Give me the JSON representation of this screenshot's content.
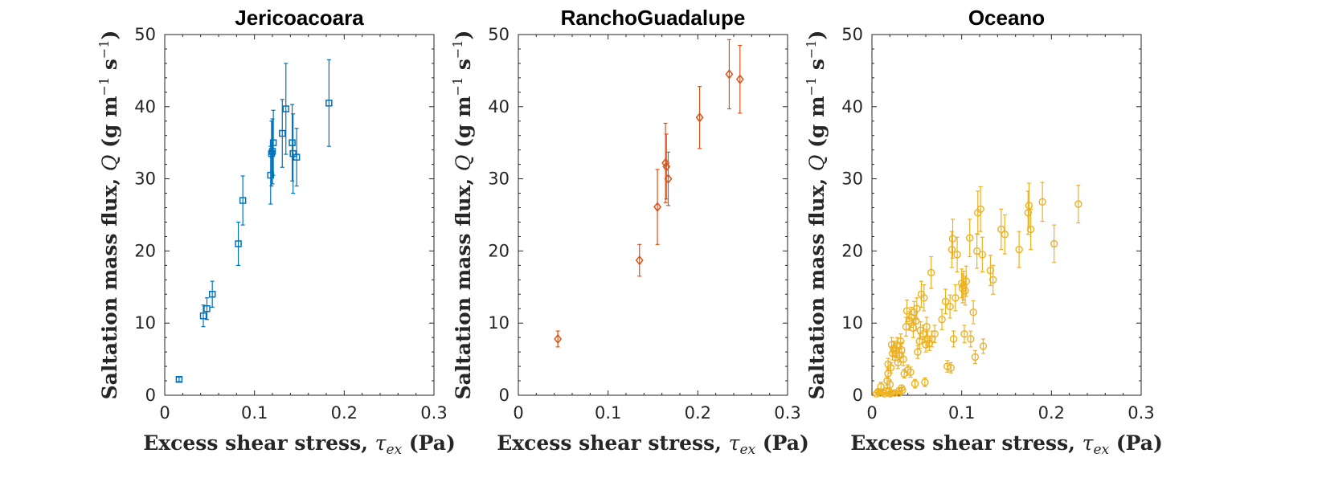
{
  "chart_data": [
    {
      "type": "scatter",
      "title": "Jericoacoara",
      "xlabel": "Excess shear stress, τex (Pa)",
      "ylabel": "Saltation mass flux, Q (g m−1 s−1)",
      "xlim": [
        0,
        0.3
      ],
      "ylim": [
        0,
        50
      ],
      "xticks": [
        0,
        0.1,
        0.2,
        0.3
      ],
      "xtick_labels": [
        "0",
        "0.1",
        "0.2",
        "0.3"
      ],
      "yticks": [
        0,
        10,
        20,
        30,
        40,
        50
      ],
      "ytick_labels": [
        "0",
        "10",
        "20",
        "30",
        "40",
        "50"
      ],
      "marker": "square",
      "color": "#0072BD",
      "grid": false,
      "points": [
        {
          "x": 0.016,
          "y": 2.2,
          "err": 0.3
        },
        {
          "x": 0.043,
          "y": 11.0,
          "err": 1.5
        },
        {
          "x": 0.047,
          "y": 12.0,
          "err": 1.5
        },
        {
          "x": 0.053,
          "y": 14.0,
          "err": 1.8
        },
        {
          "x": 0.082,
          "y": 21.0,
          "err": 3.0
        },
        {
          "x": 0.087,
          "y": 27.0,
          "err": 3.4
        },
        {
          "x": 0.118,
          "y": 30.5,
          "err": 4.0
        },
        {
          "x": 0.119,
          "y": 33.5,
          "err": 4.5
        },
        {
          "x": 0.12,
          "y": 33.8,
          "err": 4.5
        },
        {
          "x": 0.121,
          "y": 35.0,
          "err": 4.5
        },
        {
          "x": 0.131,
          "y": 36.3,
          "err": 4.7
        },
        {
          "x": 0.135,
          "y": 39.7,
          "err": 6.3
        },
        {
          "x": 0.142,
          "y": 35.0,
          "err": 5.3
        },
        {
          "x": 0.143,
          "y": 33.5,
          "err": 5.5
        },
        {
          "x": 0.147,
          "y": 33.0,
          "err": 4.0
        },
        {
          "x": 0.183,
          "y": 40.5,
          "err": 6.0
        }
      ]
    },
    {
      "type": "scatter",
      "title": "RanchoGuadalupe",
      "xlabel": "Excess shear stress, τex (Pa)",
      "ylabel": "Saltation mass flux, Q (g m−1 s−1)",
      "xlim": [
        0,
        0.3
      ],
      "ylim": [
        0,
        50
      ],
      "xticks": [
        0,
        0.1,
        0.2,
        0.3
      ],
      "xtick_labels": [
        "0",
        "0.1",
        "0.2",
        "0.3"
      ],
      "yticks": [
        0,
        10,
        20,
        30,
        40,
        50
      ],
      "ytick_labels": [
        "0",
        "10",
        "20",
        "30",
        "40",
        "50"
      ],
      "marker": "diamond",
      "color": "#D95319",
      "grid": false,
      "points": [
        {
          "x": 0.044,
          "y": 7.8,
          "err": 1.1
        },
        {
          "x": 0.135,
          "y": 18.7,
          "err": 2.2
        },
        {
          "x": 0.155,
          "y": 26.1,
          "err": 5.2
        },
        {
          "x": 0.164,
          "y": 32.2,
          "err": 5.5
        },
        {
          "x": 0.165,
          "y": 31.7,
          "err": 4.5
        },
        {
          "x": 0.167,
          "y": 30.0,
          "err": 3.7
        },
        {
          "x": 0.202,
          "y": 38.5,
          "err": 4.3
        },
        {
          "x": 0.235,
          "y": 44.5,
          "err": 4.8
        },
        {
          "x": 0.247,
          "y": 43.8,
          "err": 4.7
        }
      ]
    },
    {
      "type": "scatter",
      "title": "Oceano",
      "xlabel": "Excess shear stress, τex (Pa)",
      "ylabel": "Saltation mass flux, Q (g m−1 s−1)",
      "xlim": [
        0,
        0.3
      ],
      "ylim": [
        0,
        50
      ],
      "xticks": [
        0,
        0.1,
        0.2,
        0.3
      ],
      "xtick_labels": [
        "0",
        "0.1",
        "0.2",
        "0.3"
      ],
      "yticks": [
        0,
        10,
        20,
        30,
        40,
        50
      ],
      "ytick_labels": [
        "0",
        "10",
        "20",
        "30",
        "40",
        "50"
      ],
      "marker": "circle",
      "color": "#EDB120",
      "grid": false,
      "points": [
        {
          "x": 0.005,
          "y": 0.2,
          "err": 0.2
        },
        {
          "x": 0.007,
          "y": 0.5,
          "err": 0.3
        },
        {
          "x": 0.009,
          "y": 0.3,
          "err": 0.2
        },
        {
          "x": 0.01,
          "y": 1.2,
          "err": 0.6
        },
        {
          "x": 0.012,
          "y": 0.4,
          "err": 0.3
        },
        {
          "x": 0.014,
          "y": 0.2,
          "err": 0.2
        },
        {
          "x": 0.016,
          "y": 0.6,
          "err": 0.4
        },
        {
          "x": 0.017,
          "y": 2.0,
          "err": 0.6
        },
        {
          "x": 0.018,
          "y": 3.0,
          "err": 0.7
        },
        {
          "x": 0.018,
          "y": 4.3,
          "err": 0.8
        },
        {
          "x": 0.019,
          "y": 0.5,
          "err": 0.4
        },
        {
          "x": 0.02,
          "y": 0.2,
          "err": 0.2
        },
        {
          "x": 0.02,
          "y": 1.5,
          "err": 0.6
        },
        {
          "x": 0.021,
          "y": 3.8,
          "err": 0.7
        },
        {
          "x": 0.022,
          "y": 7.0,
          "err": 1.0
        },
        {
          "x": 0.022,
          "y": 0.3,
          "err": 0.2
        },
        {
          "x": 0.023,
          "y": 5.8,
          "err": 0.9
        },
        {
          "x": 0.024,
          "y": 6.5,
          "err": 1.0
        },
        {
          "x": 0.025,
          "y": 0.3,
          "err": 0.2
        },
        {
          "x": 0.026,
          "y": 5.7,
          "err": 0.9
        },
        {
          "x": 0.027,
          "y": 6.2,
          "err": 1.0
        },
        {
          "x": 0.028,
          "y": 7.0,
          "err": 1.0
        },
        {
          "x": 0.029,
          "y": 4.5,
          "err": 0.8
        },
        {
          "x": 0.03,
          "y": 0.6,
          "err": 0.4
        },
        {
          "x": 0.03,
          "y": 0.3,
          "err": 0.2
        },
        {
          "x": 0.031,
          "y": 5.5,
          "err": 0.9
        },
        {
          "x": 0.032,
          "y": 7.5,
          "err": 1.0
        },
        {
          "x": 0.033,
          "y": 6.3,
          "err": 1.0
        },
        {
          "x": 0.033,
          "y": 1.0,
          "err": 0.4
        },
        {
          "x": 0.034,
          "y": 0.7,
          "err": 0.4
        },
        {
          "x": 0.035,
          "y": 5.0,
          "err": 0.9
        },
        {
          "x": 0.036,
          "y": 3.0,
          "err": 0.6
        },
        {
          "x": 0.038,
          "y": 9.5,
          "err": 1.3
        },
        {
          "x": 0.039,
          "y": 11.7,
          "err": 1.5
        },
        {
          "x": 0.04,
          "y": 3.5,
          "err": 0.7
        },
        {
          "x": 0.042,
          "y": 10.3,
          "err": 1.3
        },
        {
          "x": 0.043,
          "y": 3.2,
          "err": 0.7
        },
        {
          "x": 0.044,
          "y": 10.8,
          "err": 1.4
        },
        {
          "x": 0.046,
          "y": 9.3,
          "err": 1.3
        },
        {
          "x": 0.047,
          "y": 11.5,
          "err": 1.5
        },
        {
          "x": 0.048,
          "y": 1.6,
          "err": 0.6
        },
        {
          "x": 0.049,
          "y": 10.3,
          "err": 1.3
        },
        {
          "x": 0.05,
          "y": 12.0,
          "err": 1.5
        },
        {
          "x": 0.051,
          "y": 6.0,
          "err": 0.9
        },
        {
          "x": 0.053,
          "y": 7.5,
          "err": 1.0
        },
        {
          "x": 0.054,
          "y": 9.0,
          "err": 1.2
        },
        {
          "x": 0.055,
          "y": 14.0,
          "err": 1.8
        },
        {
          "x": 0.057,
          "y": 8.5,
          "err": 1.2
        },
        {
          "x": 0.058,
          "y": 13.5,
          "err": 1.8
        },
        {
          "x": 0.059,
          "y": 1.8,
          "err": 0.6
        },
        {
          "x": 0.06,
          "y": 7.0,
          "err": 1.0
        },
        {
          "x": 0.061,
          "y": 9.5,
          "err": 1.3
        },
        {
          "x": 0.062,
          "y": 7.8,
          "err": 1.1
        },
        {
          "x": 0.064,
          "y": 7.2,
          "err": 1.0
        },
        {
          "x": 0.066,
          "y": 17.0,
          "err": 2.2
        },
        {
          "x": 0.067,
          "y": 7.8,
          "err": 1.1
        },
        {
          "x": 0.07,
          "y": 8.5,
          "err": 1.2
        },
        {
          "x": 0.078,
          "y": 10.5,
          "err": 1.4
        },
        {
          "x": 0.082,
          "y": 13.0,
          "err": 1.7
        },
        {
          "x": 0.084,
          "y": 4.0,
          "err": 0.8
        },
        {
          "x": 0.087,
          "y": 12.3,
          "err": 1.6
        },
        {
          "x": 0.088,
          "y": 3.8,
          "err": 0.7
        },
        {
          "x": 0.089,
          "y": 20.2,
          "err": 2.5
        },
        {
          "x": 0.09,
          "y": 21.7,
          "err": 2.7
        },
        {
          "x": 0.091,
          "y": 7.8,
          "err": 1.1
        },
        {
          "x": 0.093,
          "y": 13.5,
          "err": 1.8
        },
        {
          "x": 0.095,
          "y": 19.5,
          "err": 2.4
        },
        {
          "x": 0.1,
          "y": 15.5,
          "err": 2.0
        },
        {
          "x": 0.101,
          "y": 14.8,
          "err": 2.0
        },
        {
          "x": 0.102,
          "y": 15.2,
          "err": 2.0
        },
        {
          "x": 0.103,
          "y": 8.5,
          "err": 1.2
        },
        {
          "x": 0.104,
          "y": 14.5,
          "err": 2.0
        },
        {
          "x": 0.105,
          "y": 15.8,
          "err": 2.1
        },
        {
          "x": 0.109,
          "y": 21.8,
          "err": 2.6
        },
        {
          "x": 0.11,
          "y": 7.8,
          "err": 1.1
        },
        {
          "x": 0.113,
          "y": 11.5,
          "err": 1.6
        },
        {
          "x": 0.115,
          "y": 5.3,
          "err": 0.9
        },
        {
          "x": 0.117,
          "y": 20.0,
          "err": 2.4
        },
        {
          "x": 0.118,
          "y": 25.3,
          "err": 3.0
        },
        {
          "x": 0.121,
          "y": 25.8,
          "err": 3.1
        },
        {
          "x": 0.123,
          "y": 19.5,
          "err": 2.4
        },
        {
          "x": 0.124,
          "y": 6.8,
          "err": 1.0
        },
        {
          "x": 0.132,
          "y": 17.3,
          "err": 2.1
        },
        {
          "x": 0.135,
          "y": 16.0,
          "err": 2.0
        },
        {
          "x": 0.144,
          "y": 23.0,
          "err": 2.8
        },
        {
          "x": 0.148,
          "y": 22.3,
          "err": 2.7
        },
        {
          "x": 0.164,
          "y": 20.2,
          "err": 2.5
        },
        {
          "x": 0.174,
          "y": 25.3,
          "err": 3.0
        },
        {
          "x": 0.175,
          "y": 26.3,
          "err": 3.1
        },
        {
          "x": 0.177,
          "y": 23.0,
          "err": 2.8
        },
        {
          "x": 0.19,
          "y": 26.8,
          "err": 2.7
        },
        {
          "x": 0.203,
          "y": 21.0,
          "err": 2.6
        },
        {
          "x": 0.23,
          "y": 26.5,
          "err": 2.6
        }
      ]
    }
  ]
}
